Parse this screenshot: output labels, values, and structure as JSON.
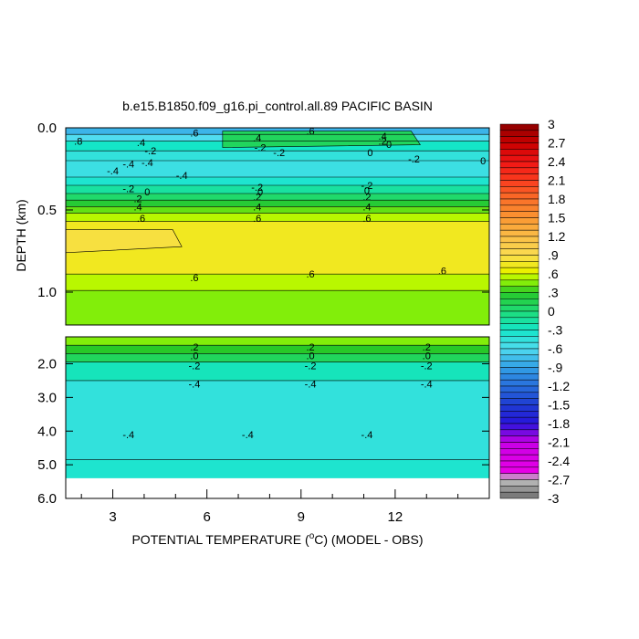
{
  "chart_data": {
    "type": "heatmap",
    "title": "b.e15.B1850.f09_g16.pi_control.all.89 PACIFIC BASIN",
    "xlabel": "POTENTIAL TEMPERATURE (",
    "xlabel_unit": "o",
    "xlabel_end": "C) (MODEL - OBS)",
    "ylabel": "DEPTH (km)",
    "x_ticks": [
      "3",
      "6",
      "9",
      "12"
    ],
    "x_tick_values": [
      3,
      6,
      9,
      12
    ],
    "xlim": [
      1.5,
      15
    ],
    "upper_panel": {
      "ylim": [
        0,
        1.2
      ],
      "y_ticks": [
        "0.0",
        "0.5",
        "1.0"
      ],
      "y_tick_values": [
        0.0,
        0.5,
        1.0
      ],
      "bands": [
        {
          "y0": 0.0,
          "y1": 0.04,
          "value": -0.8
        },
        {
          "y0": 0.04,
          "y1": 0.08,
          "value": -0.6
        },
        {
          "y0": 0.08,
          "y1": 0.14,
          "value": -0.3
        },
        {
          "y0": 0.14,
          "y1": 0.2,
          "value": -0.45
        },
        {
          "y0": 0.2,
          "y1": 0.3,
          "value": -0.5
        },
        {
          "y0": 0.3,
          "y1": 0.35,
          "value": -0.35
        },
        {
          "y0": 0.35,
          "y1": 0.4,
          "value": -0.15
        },
        {
          "y0": 0.4,
          "y1": 0.44,
          "value": 0.05
        },
        {
          "y0": 0.44,
          "y1": 0.48,
          "value": 0.25
        },
        {
          "y0": 0.48,
          "y1": 0.52,
          "value": 0.4
        },
        {
          "y0": 0.52,
          "y1": 0.57,
          "value": 0.55
        },
        {
          "y0": 0.57,
          "y1": 0.89,
          "value": 0.75
        },
        {
          "y0": 0.89,
          "y1": 0.99,
          "value": 0.55
        },
        {
          "y0": 0.99,
          "y1": 1.2,
          "value": 0.45
        }
      ],
      "patches": [
        {
          "x0": 1.5,
          "x1": 5.2,
          "y0": 0.62,
          "y1": 0.76,
          "value": 0.85
        },
        {
          "x0": 6.5,
          "x1": 12.8,
          "y0": 0.02,
          "y1": 0.12,
          "value": 0.1
        }
      ],
      "contour_labels": [
        {
          "text": ".8",
          "x": 1.9,
          "y": 0.08
        },
        {
          "text": ".4",
          "x": 3.9,
          "y": 0.09
        },
        {
          "text": ".6",
          "x": 5.6,
          "y": 0.03
        },
        {
          "text": ".4",
          "x": 7.6,
          "y": 0.06
        },
        {
          "text": ".6",
          "x": 9.3,
          "y": 0.02
        },
        {
          "text": ".4",
          "x": 11.6,
          "y": 0.05
        },
        {
          "text": "-.2",
          "x": 4.2,
          "y": 0.14
        },
        {
          "text": "-.2",
          "x": 7.7,
          "y": 0.12
        },
        {
          "text": ".2",
          "x": 11.6,
          "y": 0.08
        },
        {
          "text": "0",
          "x": 11.8,
          "y": 0.1
        },
        {
          "text": "-.2",
          "x": 8.3,
          "y": 0.15
        },
        {
          "text": "0",
          "x": 11.2,
          "y": 0.15
        },
        {
          "text": "-.4",
          "x": 3.5,
          "y": 0.22
        },
        {
          "text": "-.4",
          "x": 4.1,
          "y": 0.21
        },
        {
          "text": "-.4",
          "x": 3.0,
          "y": 0.26
        },
        {
          "text": "-.4",
          "x": 5.2,
          "y": 0.29
        },
        {
          "text": "-.2",
          "x": 12.6,
          "y": 0.19
        },
        {
          "text": "0",
          "x": 14.8,
          "y": 0.2
        },
        {
          "text": "-.2",
          "x": 3.5,
          "y": 0.37
        },
        {
          "text": "-.2",
          "x": 7.6,
          "y": 0.36
        },
        {
          "text": "-.2",
          "x": 11.1,
          "y": 0.35
        },
        {
          "text": "0",
          "x": 4.1,
          "y": 0.39
        },
        {
          "text": "0",
          "x": 7.7,
          "y": 0.39
        },
        {
          "text": "0",
          "x": 11.1,
          "y": 0.38
        },
        {
          "text": ".2",
          "x": 3.8,
          "y": 0.43
        },
        {
          "text": ".2",
          "x": 7.6,
          "y": 0.42
        },
        {
          "text": ".2",
          "x": 11.1,
          "y": 0.42
        },
        {
          "text": ".4",
          "x": 3.8,
          "y": 0.48
        },
        {
          "text": ".4",
          "x": 7.6,
          "y": 0.48
        },
        {
          "text": ".4",
          "x": 11.1,
          "y": 0.48
        },
        {
          "text": ".6",
          "x": 3.9,
          "y": 0.55
        },
        {
          "text": ".6",
          "x": 7.6,
          "y": 0.55
        },
        {
          "text": ".6",
          "x": 11.1,
          "y": 0.55
        },
        {
          "text": ".6",
          "x": 5.6,
          "y": 0.91
        },
        {
          "text": ".6",
          "x": 9.3,
          "y": 0.89
        },
        {
          "text": ".6",
          "x": 13.5,
          "y": 0.87
        }
      ]
    },
    "lower_panel": {
      "ylim": [
        1.2,
        6.0
      ],
      "y_ticks": [
        "2.0",
        "3.0",
        "4.0",
        "5.0",
        "6.0"
      ],
      "y_tick_values": [
        2.0,
        3.0,
        4.0,
        5.0,
        6.0
      ],
      "bands": [
        {
          "y0": 1.2,
          "y1": 1.45,
          "value": 0.45
        },
        {
          "y0": 1.45,
          "y1": 1.7,
          "value": 0.3
        },
        {
          "y0": 1.7,
          "y1": 1.95,
          "value": 0.1
        },
        {
          "y0": 1.95,
          "y1": 2.5,
          "value": -0.25
        },
        {
          "y0": 2.5,
          "y1": 4.85,
          "value": -0.45
        },
        {
          "y0": 4.85,
          "y1": 5.4,
          "value": -0.35
        }
      ],
      "contour_labels": [
        {
          "text": ".2",
          "x": 5.6,
          "y": 1.5
        },
        {
          "text": ".2",
          "x": 9.3,
          "y": 1.5
        },
        {
          "text": ".2",
          "x": 13.0,
          "y": 1.5
        },
        {
          "text": ".0",
          "x": 5.6,
          "y": 1.75
        },
        {
          "text": ".0",
          "x": 9.3,
          "y": 1.75
        },
        {
          "text": ".0",
          "x": 13.0,
          "y": 1.75
        },
        {
          "text": "-.2",
          "x": 5.6,
          "y": 2.05
        },
        {
          "text": "-.2",
          "x": 9.3,
          "y": 2.05
        },
        {
          "text": "-.2",
          "x": 13.0,
          "y": 2.05
        },
        {
          "text": "-.4",
          "x": 5.6,
          "y": 2.6
        },
        {
          "text": "-.4",
          "x": 9.3,
          "y": 2.6
        },
        {
          "text": "-.4",
          "x": 13.0,
          "y": 2.6
        },
        {
          "text": "-.4",
          "x": 3.5,
          "y": 4.1
        },
        {
          "text": "-.4",
          "x": 7.3,
          "y": 4.1
        },
        {
          "text": "-.4",
          "x": 11.1,
          "y": 4.1
        }
      ]
    },
    "colorbar": {
      "min": -3,
      "max": 3,
      "step": 0.1,
      "labels": [
        "3",
        "2.7",
        "2.4",
        "2.1",
        "1.8",
        "1.5",
        "1.2",
        ".9",
        ".6",
        ".3",
        "0",
        "-.3",
        "-.6",
        "-.9",
        "-1.2",
        "-1.5",
        "-1.8",
        "-2.1",
        "-2.4",
        "-2.7",
        "-3"
      ],
      "label_values": [
        3,
        2.7,
        2.4,
        2.1,
        1.8,
        1.5,
        1.2,
        0.9,
        0.6,
        0.3,
        0,
        -0.3,
        -0.6,
        -0.9,
        -1.2,
        -1.5,
        -1.8,
        -2.1,
        -2.4,
        -2.7,
        -3
      ]
    }
  }
}
